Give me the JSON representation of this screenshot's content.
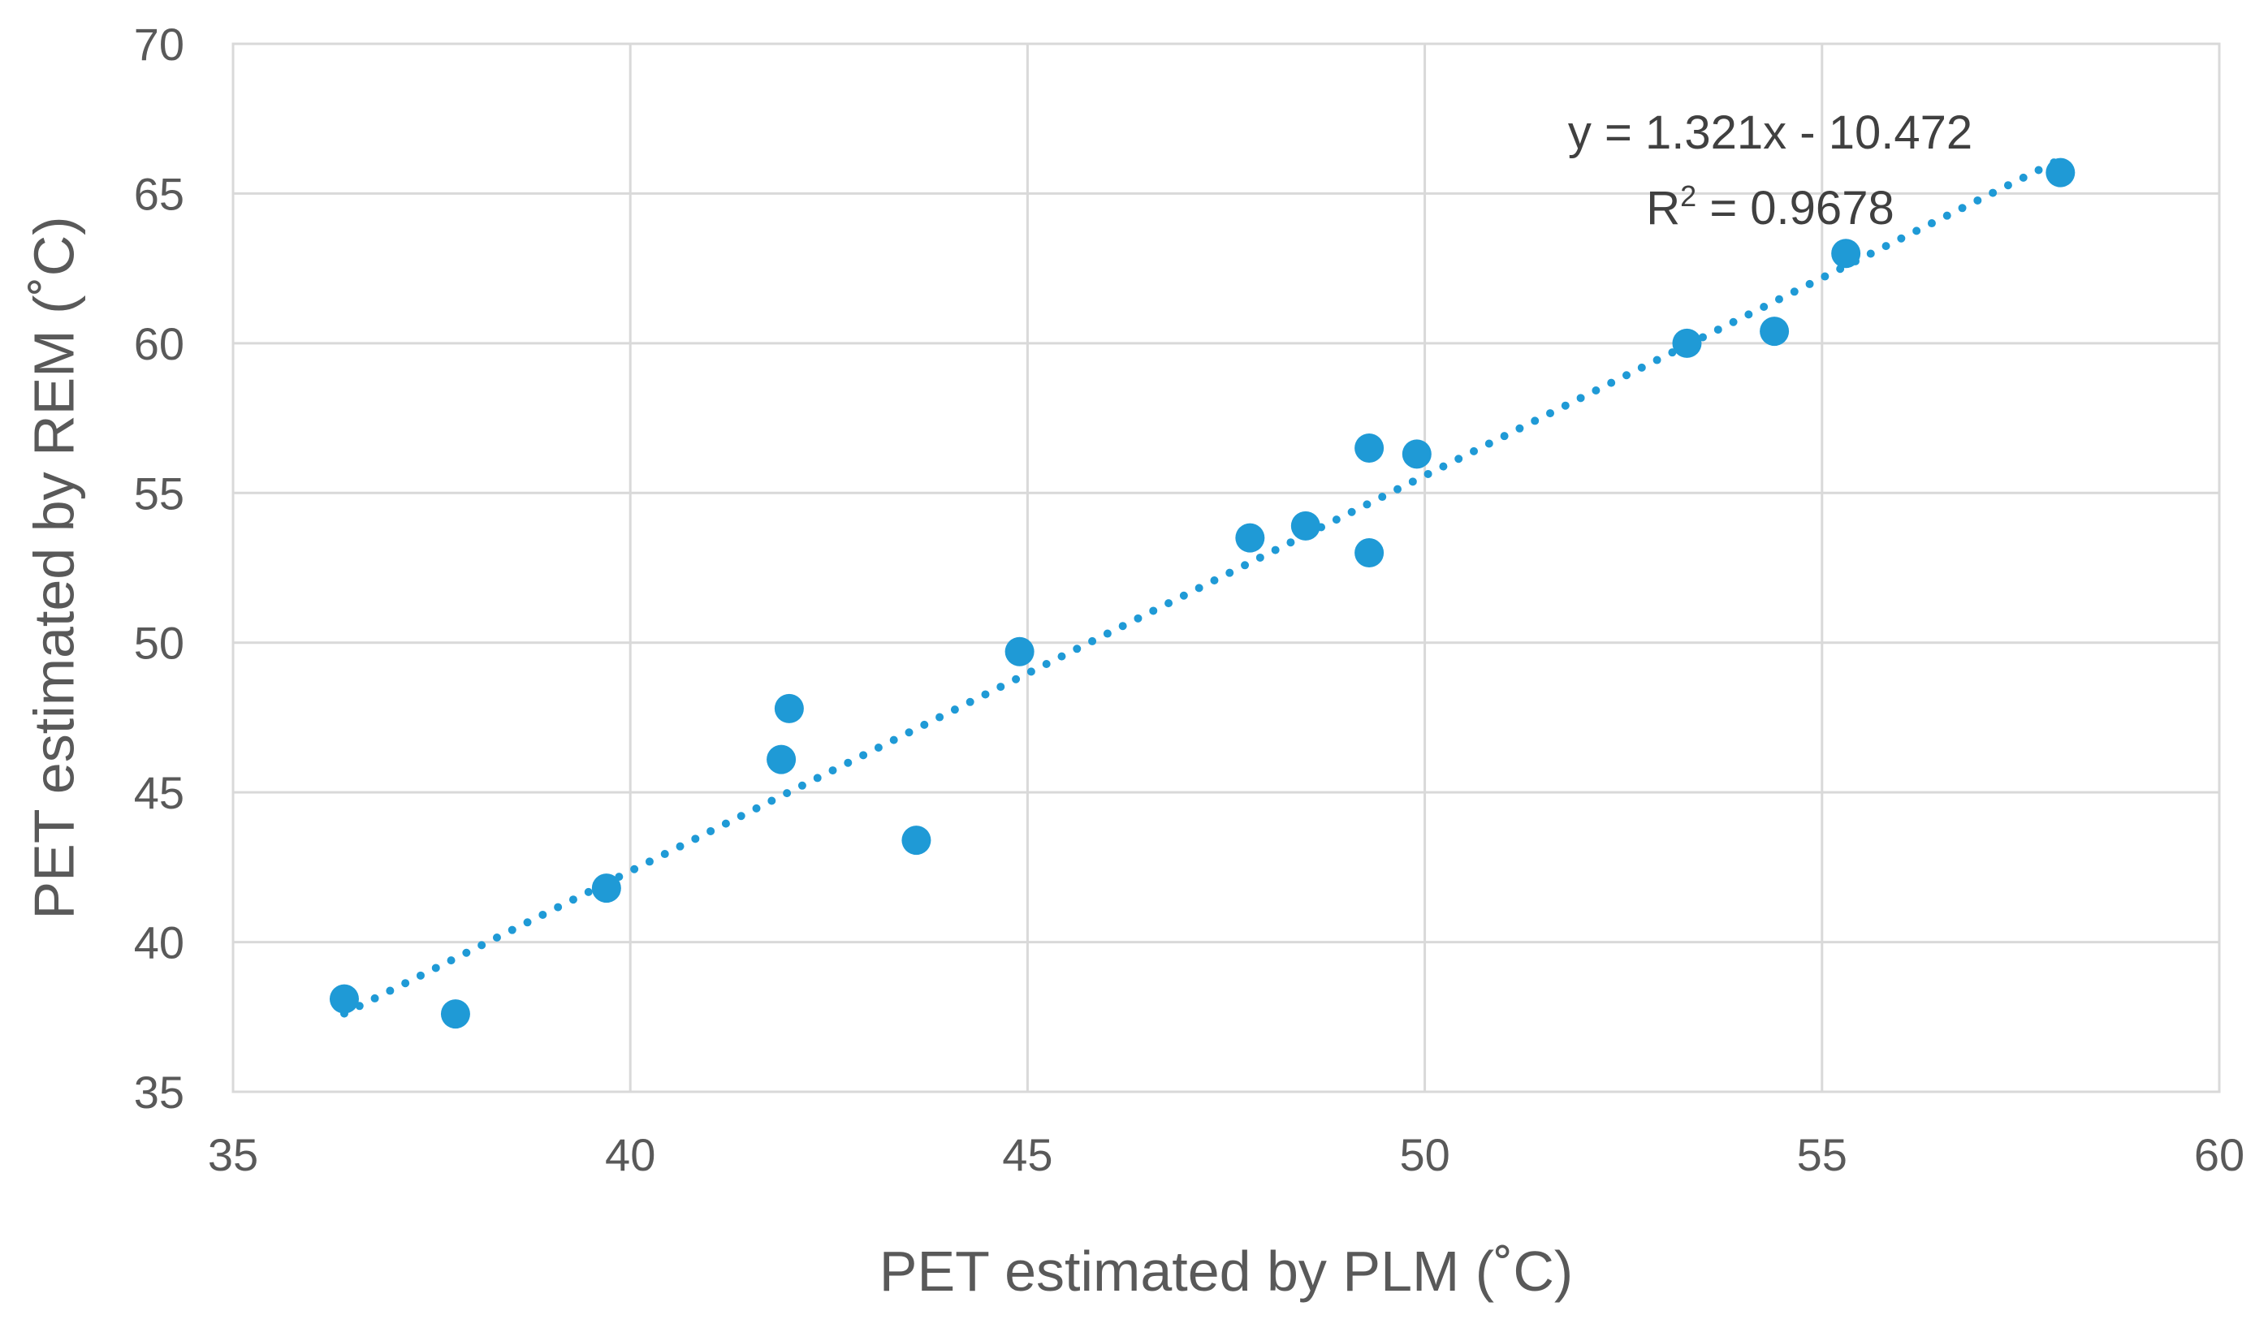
{
  "chart_data": {
    "type": "scatter",
    "title": "",
    "xlabel": "PET estimated by PLM (˚C)",
    "ylabel": "PET estimated by REM (˚C)",
    "xlim": [
      35,
      60
    ],
    "ylim": [
      35,
      70
    ],
    "x_ticks": [
      35,
      40,
      45,
      50,
      55,
      60
    ],
    "y_ticks": [
      35,
      40,
      45,
      50,
      55,
      60,
      65,
      70
    ],
    "grid": true,
    "legend": "none",
    "series": [
      {
        "name": "PET",
        "color": "#1f9ad6",
        "points": [
          {
            "x": 36.4,
            "y": 38.1
          },
          {
            "x": 37.8,
            "y": 37.6
          },
          {
            "x": 39.7,
            "y": 41.8
          },
          {
            "x": 41.9,
            "y": 46.1
          },
          {
            "x": 42.0,
            "y": 47.8
          },
          {
            "x": 43.6,
            "y": 43.4
          },
          {
            "x": 44.9,
            "y": 49.7
          },
          {
            "x": 47.8,
            "y": 53.5
          },
          {
            "x": 48.5,
            "y": 53.9
          },
          {
            "x": 49.3,
            "y": 56.5
          },
          {
            "x": 49.3,
            "y": 53.0
          },
          {
            "x": 49.9,
            "y": 56.3
          },
          {
            "x": 53.3,
            "y": 60.0
          },
          {
            "x": 54.4,
            "y": 60.4
          },
          {
            "x": 55.3,
            "y": 63.0
          },
          {
            "x": 58.0,
            "y": 65.7
          }
        ]
      }
    ],
    "trendline": {
      "type": "linear",
      "style": "dotted",
      "slope": 1.321,
      "intercept": -10.472,
      "x_range": [
        36.4,
        58.0
      ],
      "color": "#1f9ad6"
    },
    "annotations": {
      "equation": "y = 1.321x  - 10.472",
      "r_squared_label": "R",
      "r_squared_sup": "2",
      "r_squared_value": " = 0.9678"
    }
  }
}
